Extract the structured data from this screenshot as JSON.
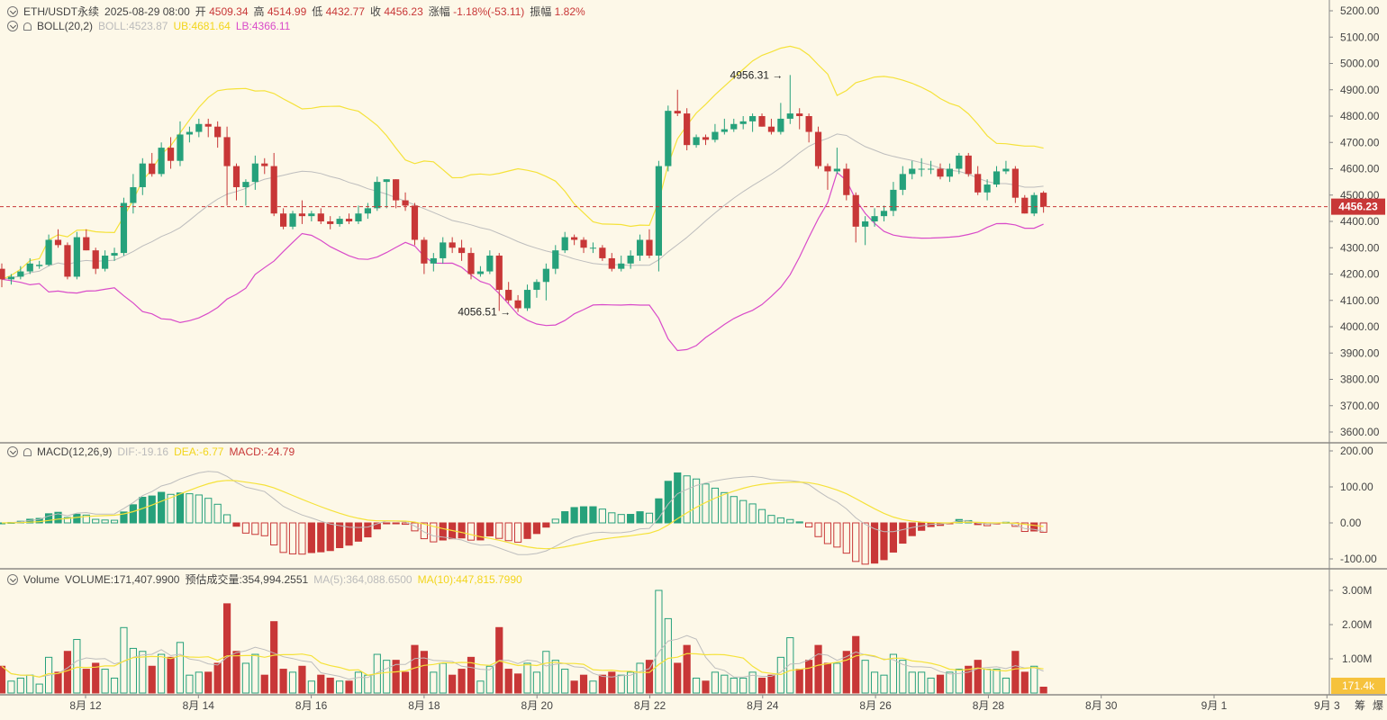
{
  "header": {
    "symbol": "ETH/USDT永续",
    "time": "2025-08-29 08:00",
    "open_label": "开",
    "open": "4509.34",
    "high_label": "高",
    "high": "4514.99",
    "low_label": "低",
    "low": "4432.77",
    "close_label": "收",
    "close": "4456.23",
    "change_label": "涨幅",
    "change": "-1.18%(-53.11)",
    "amp_label": "振幅",
    "amp": "1.82%"
  },
  "boll": {
    "name": "BOLL(20,2)",
    "boll": "BOLL:4523.87",
    "ub": "UB:4681.64",
    "lb": "LB:4366.11"
  },
  "macd": {
    "name": "MACD(12,26,9)",
    "dif": "DIF:-19.16",
    "dea": "DEA:-6.77",
    "macd": "MACD:-24.79"
  },
  "volume": {
    "name": "Volume",
    "volume": "VOLUME:171,407.9900",
    "est": "预估成交量:354,994.2551",
    "ma5": "MA(5):364,088.6500",
    "ma10": "MA(10):447,815.7990"
  },
  "price_axis": [
    "5200.00",
    "5100.00",
    "5000.00",
    "4900.00",
    "4800.00",
    "4700.00",
    "4600.00",
    "4500.00",
    "4400.00",
    "4300.00",
    "4200.00",
    "4100.00",
    "4000.00",
    "3900.00",
    "3800.00",
    "3700.00",
    "3600.00"
  ],
  "macd_axis": [
    "200.00",
    "100.00",
    "0.00",
    "-100.00"
  ],
  "vol_axis": [
    "3.00M",
    "2.00M",
    "1.00M"
  ],
  "x_axis": [
    "8月 12",
    "8月 14",
    "8月 16",
    "8月 18",
    "8月 20",
    "8月 22",
    "8月 24",
    "8月 26",
    "8月 28",
    "8月 30",
    "9月 1",
    "9月 3"
  ],
  "last_price_tag": "4456.23",
  "last_volume_tag": "171.4k",
  "max_label": "4956.31",
  "min_label": "4056.51",
  "corner": {
    "a": "筹",
    "b": "爆"
  },
  "colors": {
    "up": "#26a17b",
    "down": "#c83737",
    "boll_mid": "#bdbdbd",
    "boll_ub": "#f5e23a",
    "boll_lb": "#d94bc9",
    "dea": "#f5e23a"
  },
  "chart_data": {
    "type": "candlestick",
    "interval": "8h",
    "first_candle": "2025-08-11 08:00",
    "last_candle": "2025-08-29 08:00",
    "price_range": [
      3600,
      5200
    ],
    "candles_ohlc": [
      [
        4220,
        4240,
        4150,
        4180
      ],
      [
        4180,
        4200,
        4160,
        4190
      ],
      [
        4190,
        4230,
        4180,
        4210
      ],
      [
        4210,
        4260,
        4200,
        4240
      ],
      [
        4230,
        4250,
        4220,
        4235
      ],
      [
        4235,
        4350,
        4230,
        4330
      ],
      [
        4330,
        4370,
        4300,
        4310
      ],
      [
        4310,
        4320,
        4180,
        4190
      ],
      [
        4190,
        4360,
        4180,
        4340
      ],
      [
        4340,
        4370,
        4290,
        4290
      ],
      [
        4290,
        4300,
        4200,
        4220
      ],
      [
        4220,
        4290,
        4210,
        4270
      ],
      [
        4270,
        4300,
        4250,
        4280
      ],
      [
        4280,
        4490,
        4270,
        4470
      ],
      [
        4470,
        4580,
        4430,
        4530
      ],
      [
        4530,
        4640,
        4500,
        4620
      ],
      [
        4620,
        4660,
        4570,
        4580
      ],
      [
        4580,
        4700,
        4570,
        4680
      ],
      [
        4680,
        4720,
        4600,
        4630
      ],
      [
        4630,
        4780,
        4610,
        4730
      ],
      [
        4730,
        4760,
        4700,
        4740
      ],
      [
        4740,
        4790,
        4720,
        4770
      ],
      [
        4770,
        4790,
        4720,
        4760
      ],
      [
        4760,
        4780,
        4680,
        4720
      ],
      [
        4720,
        4760,
        4460,
        4610
      ],
      [
        4610,
        4620,
        4480,
        4530
      ],
      [
        4530,
        4560,
        4460,
        4550
      ],
      [
        4550,
        4650,
        4520,
        4620
      ],
      [
        4620,
        4640,
        4580,
        4610
      ],
      [
        4610,
        4660,
        4420,
        4430
      ],
      [
        4430,
        4450,
        4370,
        4380
      ],
      [
        4380,
        4440,
        4370,
        4430
      ],
      [
        4430,
        4480,
        4390,
        4420
      ],
      [
        4420,
        4440,
        4400,
        4430
      ],
      [
        4430,
        4450,
        4390,
        4400
      ],
      [
        4400,
        4420,
        4370,
        4390
      ],
      [
        4390,
        4420,
        4380,
        4410
      ],
      [
        4410,
        4430,
        4390,
        4400
      ],
      [
        4400,
        4460,
        4390,
        4430
      ],
      [
        4430,
        4470,
        4410,
        4450
      ],
      [
        4450,
        4570,
        4440,
        4550
      ],
      [
        4550,
        4560,
        4450,
        4560
      ],
      [
        4560,
        4560,
        4450,
        4480
      ],
      [
        4480,
        4510,
        4440,
        4460
      ],
      [
        4460,
        4470,
        4310,
        4330
      ],
      [
        4330,
        4340,
        4200,
        4240
      ],
      [
        4240,
        4280,
        4210,
        4260
      ],
      [
        4260,
        4340,
        4240,
        4320
      ],
      [
        4320,
        4340,
        4280,
        4300
      ],
      [
        4300,
        4330,
        4250,
        4280
      ],
      [
        4280,
        4300,
        4180,
        4200
      ],
      [
        4200,
        4230,
        4190,
        4210
      ],
      [
        4210,
        4290,
        4200,
        4270
      ],
      [
        4270,
        4280,
        4060,
        4140
      ],
      [
        4140,
        4170,
        4090,
        4100
      ],
      [
        4100,
        4120,
        4056,
        4070
      ],
      [
        4070,
        4160,
        4060,
        4140
      ],
      [
        4140,
        4180,
        4110,
        4170
      ],
      [
        4170,
        4240,
        4100,
        4220
      ],
      [
        4220,
        4310,
        4200,
        4290
      ],
      [
        4290,
        4360,
        4280,
        4340
      ],
      [
        4340,
        4350,
        4310,
        4330
      ],
      [
        4330,
        4340,
        4280,
        4300
      ],
      [
        4300,
        4320,
        4280,
        4300
      ],
      [
        4300,
        4310,
        4250,
        4260
      ],
      [
        4260,
        4280,
        4210,
        4220
      ],
      [
        4220,
        4270,
        4210,
        4240
      ],
      [
        4240,
        4290,
        4220,
        4270
      ],
      [
        4270,
        4350,
        4250,
        4330
      ],
      [
        4330,
        4370,
        4260,
        4270
      ],
      [
        4270,
        4630,
        4210,
        4610
      ],
      [
        4610,
        4840,
        4590,
        4820
      ],
      [
        4820,
        4900,
        4800,
        4810
      ],
      [
        4810,
        4830,
        4670,
        4690
      ],
      [
        4690,
        4730,
        4680,
        4720
      ],
      [
        4720,
        4730,
        4690,
        4710
      ],
      [
        4710,
        4770,
        4700,
        4740
      ],
      [
        4740,
        4790,
        4730,
        4750
      ],
      [
        4750,
        4790,
        4740,
        4770
      ],
      [
        4770,
        4800,
        4750,
        4780
      ],
      [
        4780,
        4810,
        4740,
        4800
      ],
      [
        4800,
        4810,
        4760,
        4760
      ],
      [
        4760,
        4790,
        4730,
        4740
      ],
      [
        4740,
        4850,
        4730,
        4790
      ],
      [
        4790,
        4956,
        4770,
        4810
      ],
      [
        4810,
        4830,
        4750,
        4800
      ],
      [
        4800,
        4810,
        4700,
        4740
      ],
      [
        4740,
        4760,
        4600,
        4610
      ],
      [
        4610,
        4620,
        4520,
        4590
      ],
      [
        4590,
        4680,
        4580,
        4600
      ],
      [
        4600,
        4620,
        4480,
        4500
      ],
      [
        4500,
        4510,
        4320,
        4380
      ],
      [
        4380,
        4420,
        4310,
        4400
      ],
      [
        4400,
        4450,
        4380,
        4420
      ],
      [
        4420,
        4460,
        4400,
        4440
      ],
      [
        4440,
        4550,
        4420,
        4520
      ],
      [
        4520,
        4610,
        4500,
        4580
      ],
      [
        4580,
        4630,
        4560,
        4600
      ],
      [
        4600,
        4640,
        4570,
        4600
      ],
      [
        4600,
        4630,
        4580,
        4600
      ],
      [
        4600,
        4620,
        4560,
        4570
      ],
      [
        4570,
        4620,
        4550,
        4600
      ],
      [
        4600,
        4660,
        4580,
        4650
      ],
      [
        4650,
        4660,
        4570,
        4580
      ],
      [
        4580,
        4610,
        4500,
        4510
      ],
      [
        4510,
        4560,
        4480,
        4540
      ],
      [
        4540,
        4610,
        4530,
        4590
      ],
      [
        4590,
        4630,
        4580,
        4600
      ],
      [
        4600,
        4610,
        4470,
        4490
      ],
      [
        4490,
        4500,
        4430,
        4430
      ],
      [
        4430,
        4510,
        4420,
        4500
      ],
      [
        4509,
        4515,
        4433,
        4456
      ]
    ]
  }
}
